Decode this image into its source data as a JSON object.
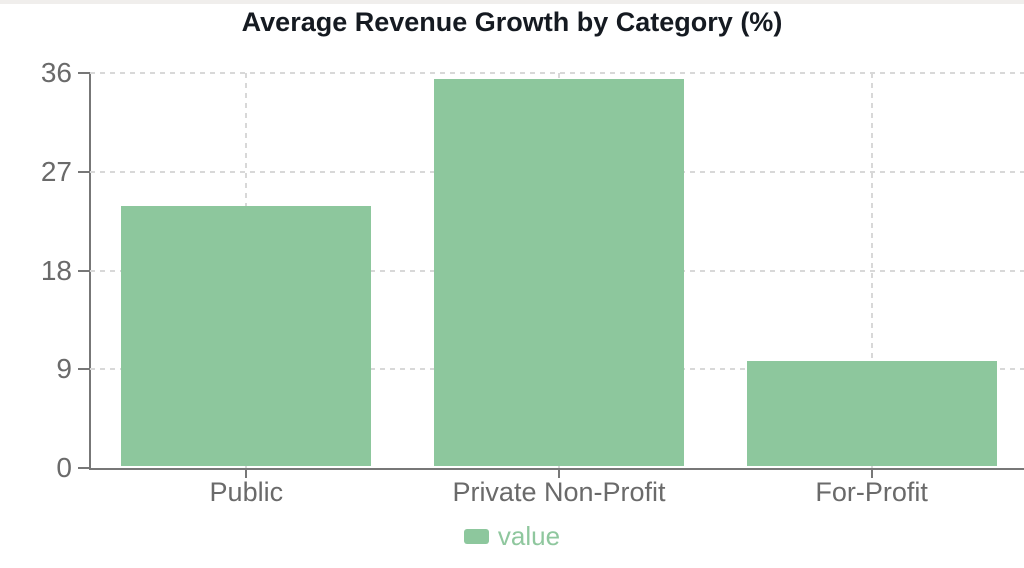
{
  "page": {
    "background_color": "#ffffff",
    "top_strip_color": "#f0eeec"
  },
  "chart_data": {
    "type": "bar",
    "title": "Average Revenue Growth by Category (%)",
    "categories": [
      "Public",
      "Private Non-Profit",
      "For-Profit"
    ],
    "series": [
      {
        "name": "value",
        "values": [
          23.7,
          35.3,
          9.6
        ]
      }
    ],
    "xlabel": "",
    "ylabel": "",
    "ylim": [
      0,
      36
    ],
    "yticks": [
      0,
      9,
      18,
      27,
      36
    ],
    "grid": "dashed horizontal at y-ticks and dashed vertical at category centers",
    "legend": {
      "position": "bottom-center",
      "items": [
        {
          "label": "value",
          "color": "#8dc79d"
        }
      ]
    },
    "colors": {
      "bar_fill": "#8dc79d",
      "legend_text": "#8fc79e",
      "title_text": "#151a21",
      "axis_label_text": "#6a6a6a",
      "axis_line": "#777777",
      "gridline": "#d8d8d8"
    }
  }
}
